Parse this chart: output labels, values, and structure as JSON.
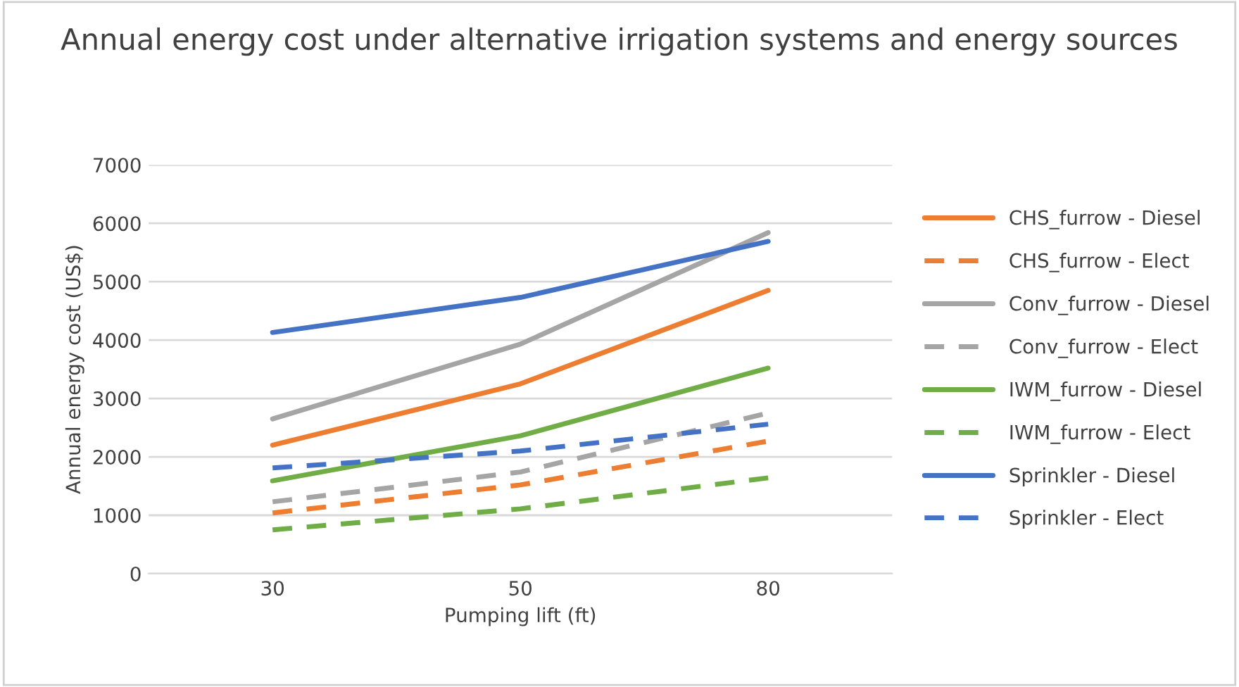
{
  "chart_data": {
    "type": "line",
    "title": "Annual energy cost under alternative irrigation systems and energy sources",
    "xlabel": "Pumping lift (ft)",
    "ylabel": "Annual energy cost (US$)",
    "categories": [
      "30",
      "50",
      "80"
    ],
    "ylim": [
      0,
      7000
    ],
    "yticks": [
      0,
      1000,
      2000,
      3000,
      4000,
      5000,
      6000,
      7000
    ],
    "grid": "y",
    "legend": "right",
    "marker": "none",
    "series": [
      {
        "name": "CHS_furrow - Diesel",
        "color": "#ed7d31",
        "line_style": "solid",
        "values": [
          2200,
          3250,
          4850
        ]
      },
      {
        "name": "CHS_furrow - Elect",
        "color": "#ed7d31",
        "line_style": "dashed",
        "values": [
          1040,
          1520,
          2270
        ]
      },
      {
        "name": "Conv_furrow - Diesel",
        "color": "#a5a5a5",
        "line_style": "solid",
        "values": [
          2650,
          3930,
          5840
        ]
      },
      {
        "name": "Conv_furrow - Elect",
        "color": "#a5a5a5",
        "line_style": "dashed",
        "values": [
          1230,
          1740,
          2750
        ]
      },
      {
        "name": "IWM_furrow - Diesel",
        "color": "#70ad47",
        "line_style": "solid",
        "values": [
          1590,
          2360,
          3520
        ]
      },
      {
        "name": "IWM_furrow - Elect",
        "color": "#70ad47",
        "line_style": "dashed",
        "values": [
          750,
          1110,
          1640
        ]
      },
      {
        "name": "Sprinkler - Diesel",
        "color": "#4472c4",
        "line_style": "solid",
        "values": [
          4130,
          4730,
          5690
        ]
      },
      {
        "name": "Sprinkler - Elect",
        "color": "#4472c4",
        "line_style": "dashed",
        "values": [
          1810,
          2100,
          2560
        ]
      }
    ]
  }
}
